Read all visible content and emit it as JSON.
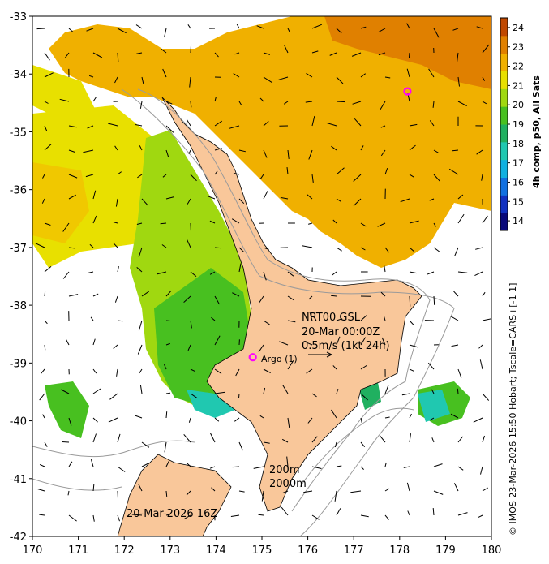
{
  "map": {
    "lon_ticks": [
      "170",
      "171",
      "172",
      "173",
      "174",
      "175",
      "176",
      "177",
      "178",
      "179",
      "180"
    ],
    "lat_ticks": [
      "-33",
      "-34",
      "-35",
      "-36",
      "-37",
      "-38",
      "-39",
      "-40",
      "-41",
      "-42"
    ],
    "lon_range": [
      170,
      180
    ],
    "lat_range": [
      -42,
      -33
    ]
  },
  "colorbar": {
    "title": "4h comp, p50, All Sats",
    "ticks": [
      "14",
      "15",
      "16",
      "17",
      "18",
      "19",
      "20",
      "21",
      "22",
      "23",
      "24"
    ],
    "range": [
      13.5,
      24.5
    ],
    "colors": [
      "#08087a",
      "#1030c0",
      "#1070e0",
      "#10b0e0",
      "#20c8b0",
      "#20b060",
      "#48c020",
      "#a0d810",
      "#e8e000",
      "#f0b000",
      "#e08000",
      "#c04800"
    ]
  },
  "annotations": {
    "header_line1": "NRT00 GSL",
    "header_line2": "20-Mar 00:00Z",
    "speed_scale": "0.5m/s (1kt 24h)",
    "argo_label": "Argo (1)",
    "contour_200": "200m",
    "contour_2000": "2000m",
    "date_stamp": "20-Mar-2026 16Z"
  },
  "credit": "© IMOS 23-Mar-2026 15:50 Hobart; Tscale=CARS+[-1 1]",
  "floats": [
    {
      "lon": 178.17,
      "lat": -34.3
    },
    {
      "lon": 174.8,
      "lat": -38.9
    }
  ],
  "colors": {
    "land": "#f9c79a",
    "argo_marker": "#ff00ff",
    "contour": "#9a9a9a"
  }
}
